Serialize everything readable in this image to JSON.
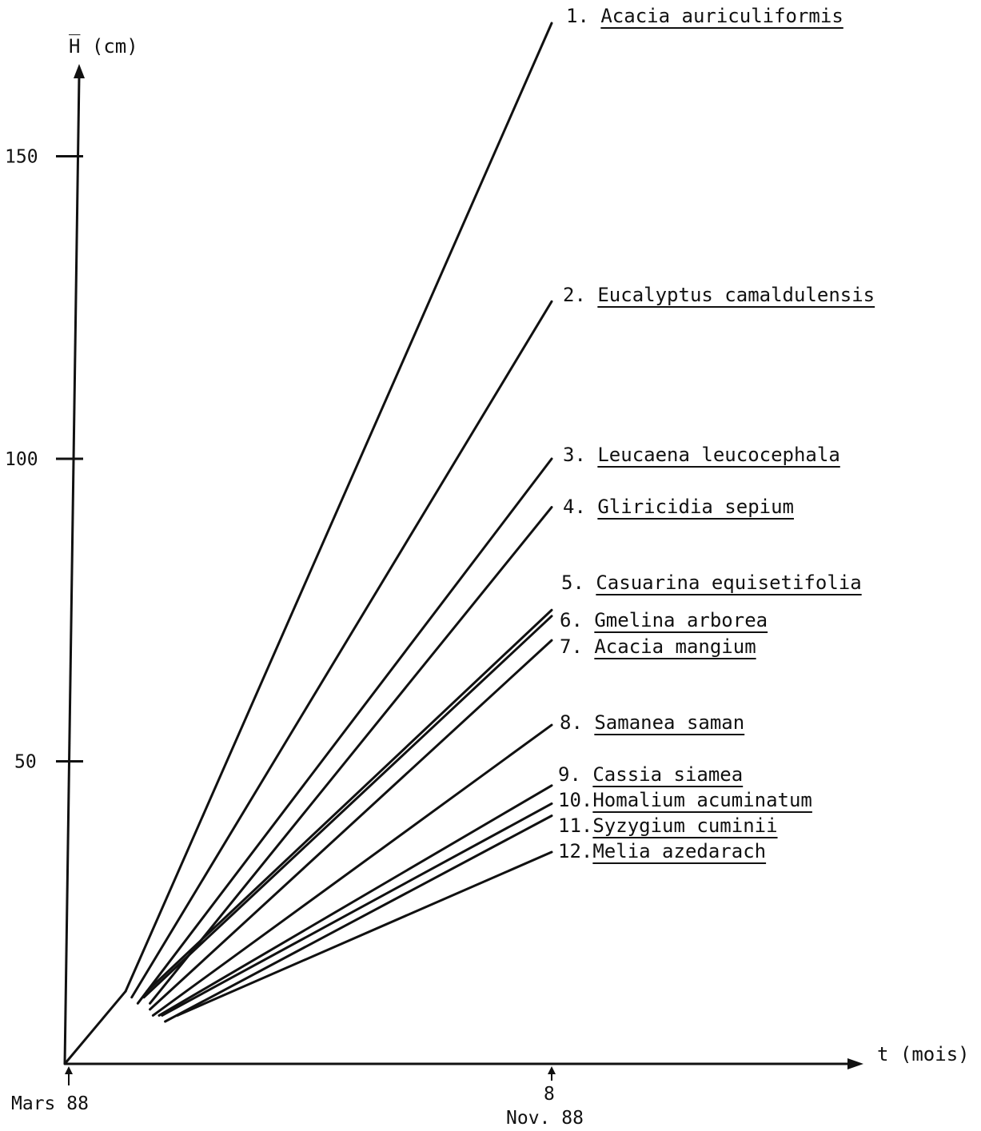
{
  "chart_data": {
    "type": "line",
    "ylabel": "H̅ (cm)",
    "xlabel": "t (mois)",
    "y_ticks": [
      "50",
      "100",
      "150"
    ],
    "x_start_label": "Mars 88",
    "x_end_tick": "8",
    "x_end_label": "Nov. 88",
    "xlim": [
      0,
      10
    ],
    "ylim": [
      0,
      170
    ],
    "series": [
      {
        "name": "1. Acacia auriculiformis",
        "start": [
          1,
          12
        ],
        "end": [
          8,
          172
        ]
      },
      {
        "name": "2. Eucalyptus camaldulensis",
        "start": [
          1.1,
          11
        ],
        "end": [
          8,
          126
        ]
      },
      {
        "name": "3. Leucaena leucocephala",
        "start": [
          1.2,
          10
        ],
        "end": [
          8,
          100
        ]
      },
      {
        "name": "4. Gliricidia sepium",
        "start": [
          1.4,
          10
        ],
        "end": [
          8,
          92
        ]
      },
      {
        "name": "5. Casuarina equisetifolia",
        "start": [
          1.35,
          12
        ],
        "end": [
          8,
          75
        ]
      },
      {
        "name": "6. Gmelina arborea",
        "start": [
          1.3,
          11
        ],
        "end": [
          8,
          74
        ]
      },
      {
        "name": "7. Acacia mangium",
        "start": [
          1.4,
          9
        ],
        "end": [
          8,
          70
        ]
      },
      {
        "name": "8. Samanea saman",
        "start": [
          1.45,
          8
        ],
        "end": [
          8,
          56
        ]
      },
      {
        "name": "9. Cassia siamea",
        "start": [
          1.55,
          8
        ],
        "end": [
          8,
          46
        ]
      },
      {
        "name": "10.Homalium acuminatum",
        "start": [
          1.6,
          8
        ],
        "end": [
          8,
          43
        ]
      },
      {
        "name": "11.Syzygium cuminii",
        "start": [
          1.65,
          7
        ],
        "end": [
          8,
          41
        ]
      },
      {
        "name": "12.Melia azedarach",
        "start": [
          1.85,
          8
        ],
        "end": [
          8,
          35
        ]
      }
    ],
    "grid": false,
    "legend": "right"
  }
}
